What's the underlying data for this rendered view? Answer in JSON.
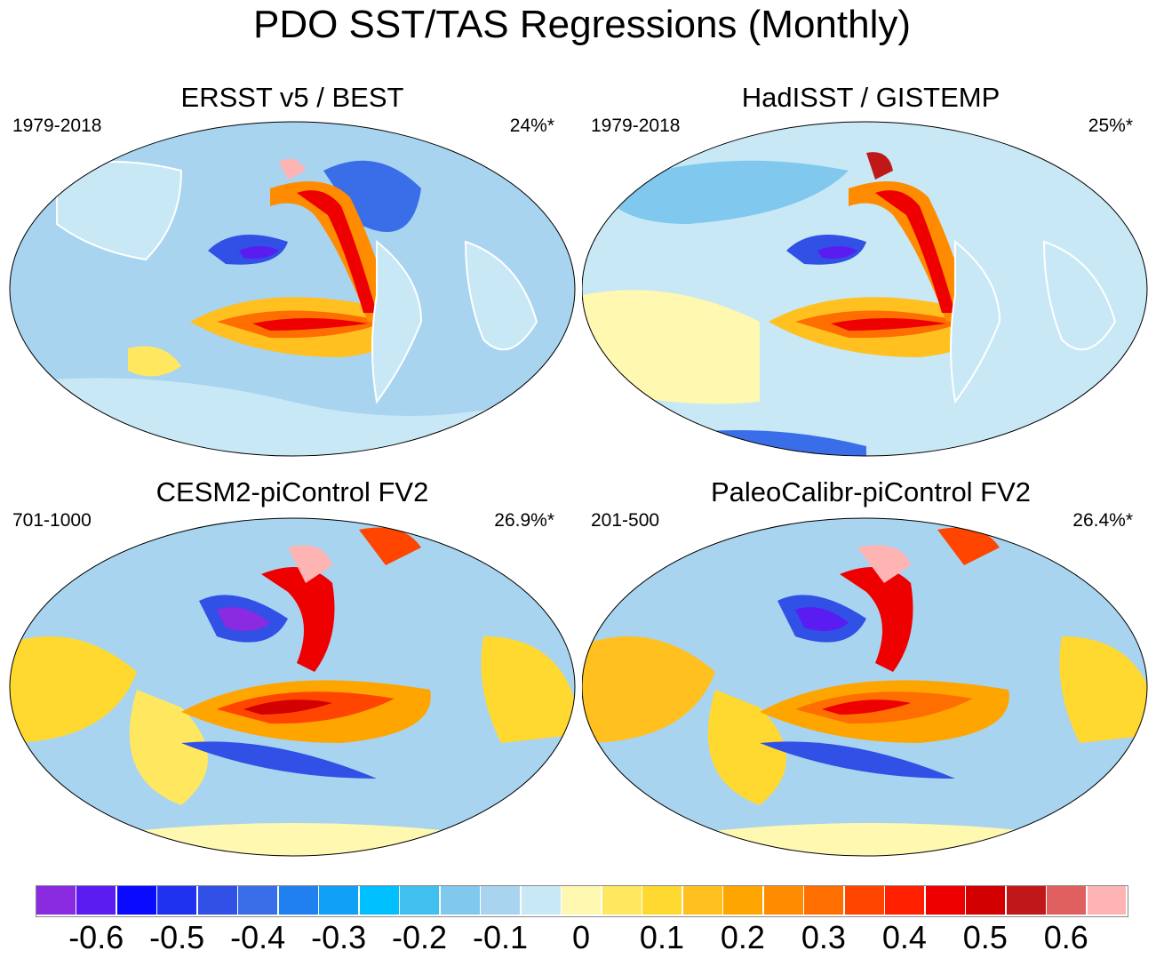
{
  "title": "PDO SST/TAS Regressions (Monthly)",
  "panels": [
    {
      "title": "ERSST v5 / BEST",
      "period": "1979-2018",
      "percent": "24%*"
    },
    {
      "title": "HadISST / GISTEMP",
      "period": "1979-2018",
      "percent": "25%*"
    },
    {
      "title": "CESM2-piControl FV2",
      "period": "701-1000",
      "percent": "26.9%*"
    },
    {
      "title": "PaleoCalibr-piControl FV2",
      "period": "201-500",
      "percent": "26.4%*"
    }
  ],
  "colorbar": {
    "colors": [
      "#8a2be2",
      "#5a1cf0",
      "#0a0aff",
      "#1e32f0",
      "#3050e6",
      "#3a6ee8",
      "#2080f0",
      "#10a0f5",
      "#00bfff",
      "#40c0ee",
      "#80c8ee",
      "#a8d4f0",
      "#c8e8f6",
      "#fff8b0",
      "#ffe860",
      "#ffd830",
      "#ffc020",
      "#ffa500",
      "#ff8c00",
      "#ff6e00",
      "#ff4500",
      "#ff2000",
      "#ee0000",
      "#d20000",
      "#c01818",
      "#e06060",
      "#ffb4b4"
    ],
    "labels": [
      "-0.6",
      "-0.5",
      "-0.4",
      "-0.3",
      "-0.2",
      "-0.1",
      "0",
      "0.1",
      "0.2",
      "0.3",
      "0.4",
      "0.5",
      "0.6"
    ]
  }
}
